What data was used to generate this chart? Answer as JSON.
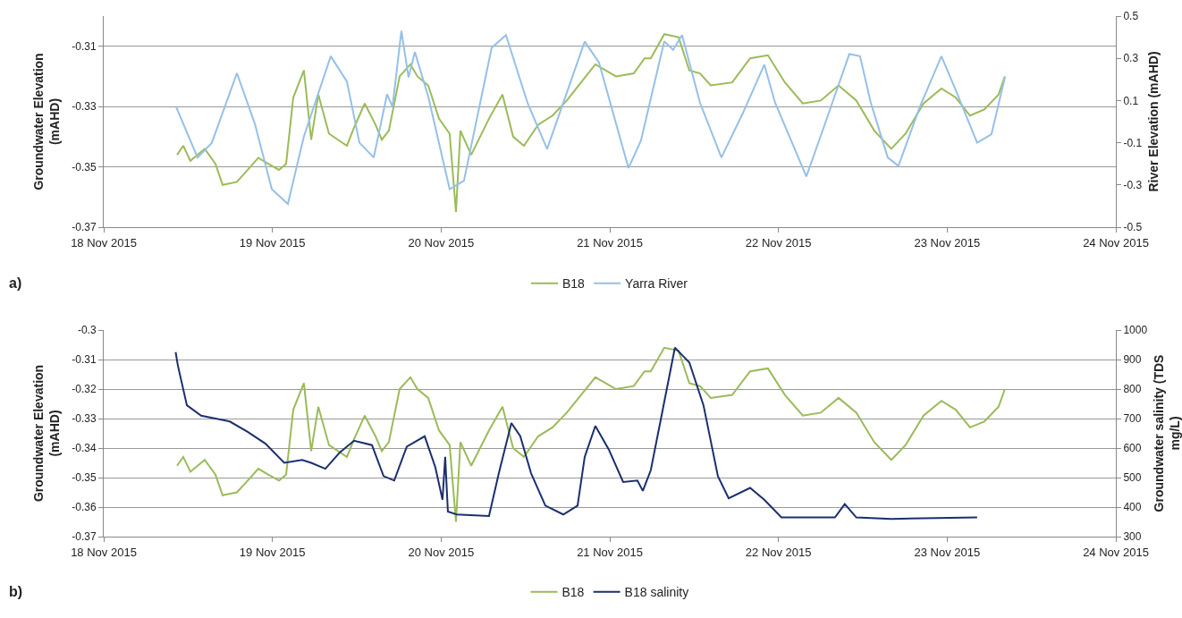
{
  "chart_data": [
    {
      "type": "line",
      "ylabel": "Groundwater Elevation (mAHD)",
      "y2label": "River Elevation (mAHD)",
      "annotations": [
        "a)"
      ],
      "xlim": [
        "2015-11-18",
        "2015-11-24"
      ],
      "xticks": [
        {
          "value": "2015-11-18",
          "label": "18 Nov 2015"
        },
        {
          "value": "2015-11-19",
          "label": "19 Nov 2015"
        },
        {
          "value": "2015-11-20",
          "label": "20 Nov 2015"
        },
        {
          "value": "2015-11-21",
          "label": "21 Nov 2015"
        },
        {
          "value": "2015-11-22",
          "label": "22 Nov 2015"
        },
        {
          "value": "2015-11-23",
          "label": "23 Nov 2015"
        },
        {
          "value": "2015-11-24",
          "label": "24 Nov 2015"
        }
      ],
      "ylim": [
        -0.37,
        -0.3
      ],
      "yticks": [
        -0.37,
        -0.35,
        -0.33,
        -0.31
      ],
      "y2lim": [
        -0.5,
        0.5
      ],
      "y2ticks": [
        -0.5,
        -0.3,
        -0.1,
        0.1,
        0.3,
        0.5
      ],
      "grid": "y",
      "legend": "bottom",
      "marker": "none",
      "line_style": "solid",
      "series": [
        {
          "name": "B18",
          "color": "#9bbb59",
          "x": [
            "2015-11-18T10:26",
            "2015-11-18T11:19",
            "2015-11-18T12:20",
            "2015-11-18T14:22",
            "2015-11-18T15:54",
            "2015-11-18T16:55",
            "2015-11-18T18:57",
            "2015-11-18T20:29",
            "2015-11-18T22:00",
            "2015-11-18T23:24",
            "2015-11-19T00:56",
            "2015-11-19T01:57",
            "2015-11-19T02:58",
            "2015-11-19T04:29",
            "2015-11-19T05:31",
            "2015-11-19T06:32",
            "2015-11-19T08:03",
            "2015-11-19T10:36",
            "2015-11-19T11:37",
            "2015-11-19T13:08",
            "2015-11-19T14:40",
            "2015-11-19T15:34",
            "2015-11-19T16:34",
            "2015-11-19T18:06",
            "2015-11-19T19:38",
            "2015-11-19T20:38",
            "2015-11-19T22:10",
            "2015-11-19T23:42",
            "2015-11-20T01:13",
            "2015-11-20T02:07",
            "2015-11-20T02:45",
            "2015-11-20T04:17",
            "2015-11-20T06:49",
            "2015-11-20T08:44",
            "2015-11-20T10:15",
            "2015-11-20T11:47",
            "2015-11-20T13:49",
            "2015-11-20T15:51",
            "2015-11-20T17:53",
            "2015-11-20T19:55",
            "2015-11-20T21:57",
            "2015-11-21T00:53",
            "2015-11-21T03:25",
            "2015-11-21T04:57",
            "2015-11-21T05:50",
            "2015-11-21T07:45",
            "2015-11-21T09:47",
            "2015-11-21T11:19",
            "2015-11-21T12:50",
            "2015-11-21T14:22",
            "2015-11-21T17:25",
            "2015-11-21T19:58",
            "2015-11-21T22:30",
            "2015-11-22T00:55",
            "2015-11-22T03:28",
            "2015-11-22T06:01",
            "2015-11-22T08:33",
            "2015-11-22T11:05",
            "2015-11-22T13:38",
            "2015-11-22T16:03",
            "2015-11-22T18:05",
            "2015-11-22T20:38",
            "2015-11-22T23:11",
            "2015-11-23T01:13",
            "2015-11-23T03:15",
            "2015-11-23T05:17",
            "2015-11-23T07:19",
            "2015-11-23T08:13"
          ],
          "values": [
            -0.346,
            -0.343,
            -0.348,
            -0.344,
            -0.349,
            -0.356,
            -0.355,
            -0.351,
            -0.347,
            -0.349,
            -0.351,
            -0.349,
            -0.327,
            -0.318,
            -0.341,
            -0.326,
            -0.339,
            -0.343,
            -0.337,
            -0.329,
            -0.336,
            -0.341,
            -0.338,
            -0.32,
            -0.316,
            -0.32,
            -0.323,
            -0.334,
            -0.339,
            -0.365,
            -0.338,
            -0.346,
            -0.334,
            -0.326,
            -0.34,
            -0.343,
            -0.336,
            -0.333,
            -0.328,
            -0.322,
            -0.316,
            -0.32,
            -0.319,
            -0.314,
            -0.314,
            -0.306,
            -0.307,
            -0.318,
            -0.319,
            -0.323,
            -0.322,
            -0.314,
            -0.313,
            -0.322,
            -0.329,
            -0.328,
            -0.323,
            -0.328,
            -0.338,
            -0.344,
            -0.339,
            -0.329,
            -0.324,
            -0.327,
            -0.333,
            -0.331,
            -0.326,
            -0.32
          ]
        },
        {
          "name": "Yarra River",
          "color": "#95c0e8",
          "axis": "y2",
          "x": [
            "2015-11-18T10:18",
            "2015-11-18T13:21",
            "2015-11-18T15:23",
            "2015-11-18T18:57",
            "2015-11-18T21:30",
            "2015-11-18T23:55",
            "2015-11-19T02:12",
            "2015-11-19T04:29",
            "2015-11-19T08:18",
            "2015-11-19T10:36",
            "2015-11-19T12:23",
            "2015-11-19T14:25",
            "2015-11-19T16:19",
            "2015-11-19T17:05",
            "2015-11-19T18:21",
            "2015-11-19T19:22",
            "2015-11-19T20:16",
            "2015-11-19T22:10",
            "2015-11-20T01:13",
            "2015-11-20T03:15",
            "2015-11-20T07:12",
            "2015-11-20T09:14",
            "2015-11-20T12:17",
            "2015-11-20T15:05",
            "2015-11-20T20:26",
            "2015-11-20T22:28",
            "2015-11-21T02:40",
            "2015-11-21T04:26",
            "2015-11-21T07:45",
            "2015-11-21T09:01",
            "2015-11-21T10:17",
            "2015-11-21T12:50",
            "2015-11-21T15:53",
            "2015-11-21T18:56",
            "2015-11-21T21:59",
            "2015-11-21T23:31",
            "2015-11-22T03:58",
            "2015-11-22T06:31",
            "2015-11-22T10:05",
            "2015-11-22T11:36",
            "2015-11-22T13:08",
            "2015-11-22T15:33",
            "2015-11-22T17:04",
            "2015-11-22T20:07",
            "2015-11-22T23:11",
            "2015-11-23T01:13",
            "2015-11-23T04:16",
            "2015-11-23T06:18",
            "2015-11-23T08:13"
          ],
          "values": [
            0.07,
            -0.17,
            -0.1,
            0.23,
            -0.01,
            -0.32,
            -0.39,
            -0.07,
            0.31,
            0.19,
            -0.1,
            -0.17,
            0.13,
            0.07,
            0.43,
            0.21,
            0.33,
            0.12,
            -0.32,
            -0.28,
            0.35,
            0.41,
            0.09,
            -0.13,
            0.38,
            0.28,
            -0.22,
            -0.09,
            0.38,
            0.34,
            0.41,
            0.09,
            -0.17,
            0.04,
            0.27,
            0.09,
            -0.26,
            -0.02,
            0.32,
            0.31,
            0.09,
            -0.17,
            -0.21,
            0.07,
            0.31,
            0.15,
            -0.1,
            -0.06,
            0.21
          ]
        }
      ]
    },
    {
      "type": "line",
      "ylabel": "Groundwater Elevation (mAHD)",
      "y2label": "Groundwater salinity (TDS mg/L)",
      "annotations": [
        "b)"
      ],
      "xlim": [
        "2015-11-18",
        "2015-11-24"
      ],
      "xticks": [
        {
          "value": "2015-11-18",
          "label": "18 Nov 2015"
        },
        {
          "value": "2015-11-19",
          "label": "19 Nov 2015"
        },
        {
          "value": "2015-11-20",
          "label": "20 Nov 2015"
        },
        {
          "value": "2015-11-21",
          "label": "21 Nov 2015"
        },
        {
          "value": "2015-11-22",
          "label": "22 Nov 2015"
        },
        {
          "value": "2015-11-23",
          "label": "23 Nov 2015"
        },
        {
          "value": "2015-11-24",
          "label": "24 Nov 2015"
        }
      ],
      "ylim": [
        -0.37,
        -0.3
      ],
      "yticks": [
        -0.37,
        -0.36,
        -0.35,
        -0.34,
        -0.33,
        -0.32,
        -0.31,
        -0.3
      ],
      "y2lim": [
        300,
        1000
      ],
      "y2ticks": [
        300,
        400,
        500,
        600,
        700,
        800,
        900,
        1000
      ],
      "grid": "y",
      "legend": "bottom",
      "marker": "none",
      "line_style": "solid",
      "series": [
        {
          "name": "B18",
          "color": "#9bbb59",
          "x": [
            "2015-11-18T10:26",
            "2015-11-18T11:19",
            "2015-11-18T12:20",
            "2015-11-18T14:22",
            "2015-11-18T15:54",
            "2015-11-18T16:55",
            "2015-11-18T18:57",
            "2015-11-18T20:29",
            "2015-11-18T22:00",
            "2015-11-18T23:24",
            "2015-11-19T00:56",
            "2015-11-19T01:57",
            "2015-11-19T02:58",
            "2015-11-19T04:29",
            "2015-11-19T05:31",
            "2015-11-19T06:32",
            "2015-11-19T08:03",
            "2015-11-19T10:36",
            "2015-11-19T11:37",
            "2015-11-19T13:08",
            "2015-11-19T14:40",
            "2015-11-19T15:34",
            "2015-11-19T16:34",
            "2015-11-19T18:06",
            "2015-11-19T19:38",
            "2015-11-19T20:38",
            "2015-11-19T22:10",
            "2015-11-19T23:42",
            "2015-11-20T01:13",
            "2015-11-20T02:07",
            "2015-11-20T02:45",
            "2015-11-20T04:17",
            "2015-11-20T06:49",
            "2015-11-20T08:44",
            "2015-11-20T10:15",
            "2015-11-20T11:47",
            "2015-11-20T13:49",
            "2015-11-20T15:51",
            "2015-11-20T17:53",
            "2015-11-20T19:55",
            "2015-11-20T21:57",
            "2015-11-21T00:53",
            "2015-11-21T03:25",
            "2015-11-21T04:57",
            "2015-11-21T05:50",
            "2015-11-21T07:45",
            "2015-11-21T09:47",
            "2015-11-21T11:19",
            "2015-11-21T12:50",
            "2015-11-21T14:22",
            "2015-11-21T17:25",
            "2015-11-21T19:58",
            "2015-11-21T22:30",
            "2015-11-22T00:55",
            "2015-11-22T03:28",
            "2015-11-22T06:01",
            "2015-11-22T08:33",
            "2015-11-22T11:05",
            "2015-11-22T13:38",
            "2015-11-22T16:03",
            "2015-11-22T18:05",
            "2015-11-22T20:38",
            "2015-11-22T23:11",
            "2015-11-23T01:13",
            "2015-11-23T03:15",
            "2015-11-23T05:17",
            "2015-11-23T07:19",
            "2015-11-23T08:13"
          ],
          "values": [
            -0.346,
            -0.343,
            -0.348,
            -0.344,
            -0.349,
            -0.356,
            -0.355,
            -0.351,
            -0.347,
            -0.349,
            -0.351,
            -0.349,
            -0.327,
            -0.318,
            -0.341,
            -0.326,
            -0.339,
            -0.343,
            -0.337,
            -0.329,
            -0.336,
            -0.341,
            -0.338,
            -0.32,
            -0.316,
            -0.32,
            -0.323,
            -0.334,
            -0.339,
            -0.365,
            -0.338,
            -0.346,
            -0.334,
            -0.326,
            -0.34,
            -0.343,
            -0.336,
            -0.333,
            -0.328,
            -0.322,
            -0.316,
            -0.32,
            -0.319,
            -0.314,
            -0.314,
            -0.306,
            -0.307,
            -0.318,
            -0.319,
            -0.323,
            -0.322,
            -0.314,
            -0.313,
            -0.322,
            -0.329,
            -0.328,
            -0.323,
            -0.328,
            -0.338,
            -0.344,
            -0.339,
            -0.329,
            -0.324,
            -0.327,
            -0.333,
            -0.331,
            -0.326,
            -0.32
          ]
        },
        {
          "name": "B18 salinity",
          "color": "#1b2f6e",
          "axis": "y2",
          "x": [
            "2015-11-18T10:14",
            "2015-11-18T10:33",
            "2015-11-18T11:50",
            "2015-11-18T13:52",
            "2015-11-18T17:56",
            "2015-11-18T20:29",
            "2015-11-18T23:01",
            "2015-11-19T01:41",
            "2015-11-19T04:14",
            "2015-11-19T05:31",
            "2015-11-19T07:32",
            "2015-11-19T09:35",
            "2015-11-19T11:37",
            "2015-11-19T14:10",
            "2015-11-19T15:49",
            "2015-11-19T17:20",
            "2015-11-19T19:07",
            "2015-11-19T21:40",
            "2015-11-19T23:11",
            "2015-11-20T00:12",
            "2015-11-20T00:35",
            "2015-11-20T00:58",
            "2015-11-20T02:14",
            "2015-11-20T06:49",
            "2015-11-20T08:13",
            "2015-11-20T10:00",
            "2015-11-20T11:16",
            "2015-11-20T12:48",
            "2015-11-20T14:50",
            "2015-11-20T17:23",
            "2015-11-20T19:25",
            "2015-11-20T20:26",
            "2015-11-20T21:57",
            "2015-11-20T23:52",
            "2015-11-21T01:54",
            "2015-11-21T03:56",
            "2015-11-21T04:42",
            "2015-11-21T05:50",
            "2015-11-21T07:22",
            "2015-11-21T09:16",
            "2015-11-21T11:19",
            "2015-11-21T13:20",
            "2015-11-21T15:23",
            "2015-11-21T16:55",
            "2015-11-21T19:58",
            "2015-11-21T21:59",
            "2015-11-22T00:25",
            "2015-11-22T08:02",
            "2015-11-22T09:26",
            "2015-11-22T11:05",
            "2015-11-22T16:03",
            "2015-11-23T04:16"
          ],
          "values": [
            925,
            880,
            745,
            710,
            690,
            655,
            615,
            550,
            560,
            550,
            530,
            585,
            625,
            610,
            505,
            490,
            605,
            640,
            535,
            425,
            570,
            385,
            375,
            370,
            515,
            685,
            640,
            515,
            405,
            375,
            405,
            570,
            675,
            595,
            485,
            490,
            455,
            525,
            710,
            940,
            890,
            745,
            505,
            430,
            465,
            425,
            365,
            365,
            410,
            365,
            360,
            365
          ]
        }
      ]
    }
  ]
}
